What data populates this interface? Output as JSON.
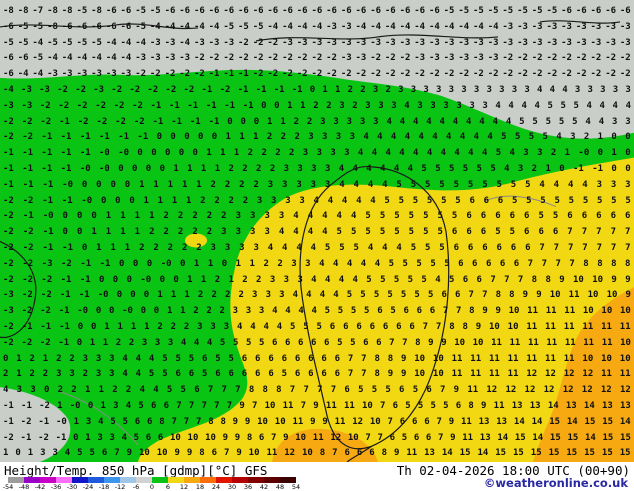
{
  "colors": {
    "green": "#0ac414",
    "gray": "#c9cec9",
    "yellow": "#f2d713",
    "orange": "#f7a912",
    "contour": "#1a1a1a",
    "coast": "#8a8a8a"
  },
  "map": {
    "rows": [
      "-8 -8 -7 -8 -8 -5 -8 -6 -6 -5 -5 -6 -6 -6 -6 -6 -6 -6 -6 -6 -6 -6 -6 -6 -6 -6 -6 -6 -6 -6 -5 -5 -5 -5 -5 -5 -5 -5 -6 -6 -6 -6 -6",
      "-6 -5 -5 -8 -6 -6 -6 -6 -6 -5 -4 -4 -4 -4 -4 -5 -5 -5 -4 -4 -4 -4 -3 -3 -4 -4 -4 -4 -4 -4 -4 -4 -4 -4 -3 -3 -3 -3 -3 -3 -3 -3 -3",
      "-5 -5 -4 -5 -5 -5 -5 -4 -4 -4 -3 -3 -4 -3 -3 -3 -2 -2 -2 -3 -3 -3 -3 -3 -3 -3 -3 -3 -3 -3 -3 -3 -3 -3 -3 -3 -3 -3 -3 -3 -3 -3 -3",
      "-6 -6 -5 -4 -4 -4 -4 -4 -4 -3 -3 -3 -3 -2 -2 -2 -2 -2 -2 -2 -2 -2 -2 -3 -3 -2 -2 -2 -3 -3 -3 -3 -3 -3 -2 -2 -2 -2 -2 -2 -2 -2 -2",
      "-6 -4 -4 -3 -3 -3 -3 -3 -3 -2 -2 -2 -2 -2 -1 -1 -1 -2 -2 -2 -2 -2 -2 -2 -2 -2 -2 -2 -2 -2 -2 -2 -2 -2 -2 -2 -2 -2 -2 -2 -2 -2 -2",
      "-4 -3 -3 -2 -2 -3 -2 -2 -2 -2 -2 -1 -2 -1 -1 -1 -1 0 1 1 2 2 3 2 3 3 3 3 3 3 3 3 3 3 3 4 4 4 3 3 3 3 3",
      "-3 -3 -2 -2 -2 -2 -2 -2 -1 -1 -1 -1 -1 -1 0 0 1 1 2 2 3 2 3 3 3 4 3 3 3 3 3 3 4 4 4 4 5 5 5 4 4 4 4",
      "-2 -2 -2 -1 -2 -2 -2 -2 -1 -1 -1 -1 0 0 0 1 1 2 2 3 3 3 3 3 4 4 4 4 4 4 4 4 4 4 5 5 5 5 5 4 4 3 3",
      "-2 -2 -1 -1 -1 -1 -1 -1 0 0 0 0 0 1 1 1 2 2 2 3 3 3 3 4 4 4 4 4 4 4 4 4 4 5 5 5 5 4 3 2 1 0 0",
      "-1 -1 -1 -1 -1 -0 -0 0 0 0 0 0 1 1 1 2 2 2 2 3 3 3 3 4 4 4 4 4 4 4 4 4 4 5 4 3 3 2 1 -0 0 1 0",
      "-1 -1 -1 -1 -0 -0 0 0 0 0 1 1 1 1 2 2 2 2 3 3 3 3 4 4 4 4 4 4 5 5 5 5 5 5 4 3 2 1 0 -1 -1 0 0",
      "-1 -1 -1 -0 0 0 0 0 1 1 1 1 1 2 2 2 2 3 3 3 3 3 4 4 4 4 5 5 5 5 5 5 5 5 5 5 4 4 4 4 3 3 3",
      "-2 -2 -1 -1 -0 0 0 0 1 1 1 1 2 2 2 2 3 3 3 3 4 4 4 4 4 5 5 5 5 5 5 6 6 6 5 5 5 5 5 5 5 5 5",
      "-2 -1 -0 0 0 0 1 1 1 1 2 2 2 2 2 3 3 3 3 4 4 4 4 4 5 5 5 5 5 5 5 6 6 6 6 6 5 5 6 6 6 6 6",
      "-2 -2 -1 0 0 1 1 1 1 2 2 2 2 2 3 3 3 3 4 4 4 4 5 5 5 5 5 5 5 5 6 6 6 5 5 6 6 6 7 7 7 7 7",
      "-2 -2 -1 -1 0 1 1 1 2 2 2 2 2 3 3 3 3 4 4 4 4 5 5 5 4 4 4 5 5 5 6 6 6 6 6 6 7 7 7 7 7 7 7",
      "-2 -2 -3 -2 -1 -1 0 0 0 -0 0 1 1 0 1 1 2 2 3 3 4 4 4 4 4 5 5 5 5 5 6 6 6 6 6 7 7 7 7 8 8 8 8",
      "-2 -2 -2 -1 -1 0 0 0 -0 0 0 1 1 2 1 2 2 3 3 3 4 4 4 4 5 5 5 5 5 4 5 6 6 7 7 7 8 8 9 10 10 9 9",
      "-3 -2 -2 -1 -1 -0 0 0 0 1 1 1 2 2 2 2 3 3 3 4 4 4 4 5 5 5 5 5 5 5 6 6 7 7 8 8 9 9 10 11 10 10 9",
      "-3 -2 -2 -1 -0 0 0 -0 0 0 1 1 2 2 2 3 3 3 4 4 4 4 5 5 5 5 6 5 6 6 6 7 7 8 9 9 10 11 11 11 10 10 10",
      "-2 -1 -1 -1 0 0 1 1 1 1 2 2 2 3 3 3 4 4 4 4 5 5 5 6 6 6 6 6 6 6 7 7 8 8 9 10 10 11 11 11 11 11 11",
      "-2 -2 -2 -1 0 1 1 2 2 3 3 3 4 4 4 5 5 5 5 6 6 6 6 6 5 5 6 6 7 7 8 9 9 10 10 11 11 11 11 11 11 11 10",
      "0 1 2 1 2 2 3 3 3 4 4 4 5 5 5 6 5 5 6 6 6 6 6 6 6 6 7 7 8 8 9 10 10 11 11 11 11 11 11 11 10 10 10",
      "2 1 2 2 3 3 2 3 3 4 4 5 5 6 6 5 6 6 6 6 6 5 6 6 6 6 7 7 8 9 9 10 10 11 11 11 11 12 12 12 12 11 11",
      "4 3 3 0 2 2 1 1 2 2 4 4 5 5 6 7 7 7 8 8 8 7 7 7 7 6 5 5 5 6 5 6 7 9 11 12 12 12 12 12 12 12 12",
      "-1 -1 -2 1 -0 0 1 3 4 5 6 6 7 7 7 7 7 9 7 10 11 7 9 11 11 10 7 6 5 5 5 5 6 8 9 11 13 13 14 13 14 13 13",
      "-1 -2 -1 -0 1 3 4 5 5 6 6 8 7 7 7 8 8 9 9 10 10 11 9 9 11 12 10 7 6 6 6 7 9 11 13 13 14 14 15 14 15 15 14",
      "-2 -1 -2 -1 0 1 3 3 4 5 6 6 10 10 10 9 9 8 6 7 9 10 11 12 10 7 7 6 5 6 6 7 9 11 13 14 15 14 15 15 14 15 15",
      "1 0 1 3 3 4 5 5 6 7 9 10 10 9 9 8 6 7 9 10 11 12 10 8 7 6 6 6 8 9 11 13 14 15 14 15 15 15 15 15 15 15 15"
    ]
  },
  "footer": {
    "title": "Height/Temp. 850 hPa [gdmp][°C] GFS",
    "datetime": "Th 02-04-2026 18:00 UTC (00+90)",
    "copyright": "©weatheronline.co.uk",
    "legend": {
      "labels": [
        "-54",
        "-48",
        "-42",
        "-36",
        "-30",
        "-24",
        "-18",
        "-12",
        "-6",
        "0",
        "6",
        "12",
        "18",
        "24",
        "30",
        "36",
        "42",
        "48",
        "54"
      ],
      "colors": [
        "#9c9c9c",
        "#9a00c8",
        "#c800c8",
        "#fa6efa",
        "#1414c8",
        "#1e5adc",
        "#3c96f0",
        "#a0c8e6",
        "#d2d2d2",
        "#0ac414",
        "#f2d713",
        "#f7a912",
        "#fa6e0a",
        "#e11400",
        "#b40000",
        "#820000",
        "#5a0000",
        "#3c0000"
      ]
    }
  }
}
